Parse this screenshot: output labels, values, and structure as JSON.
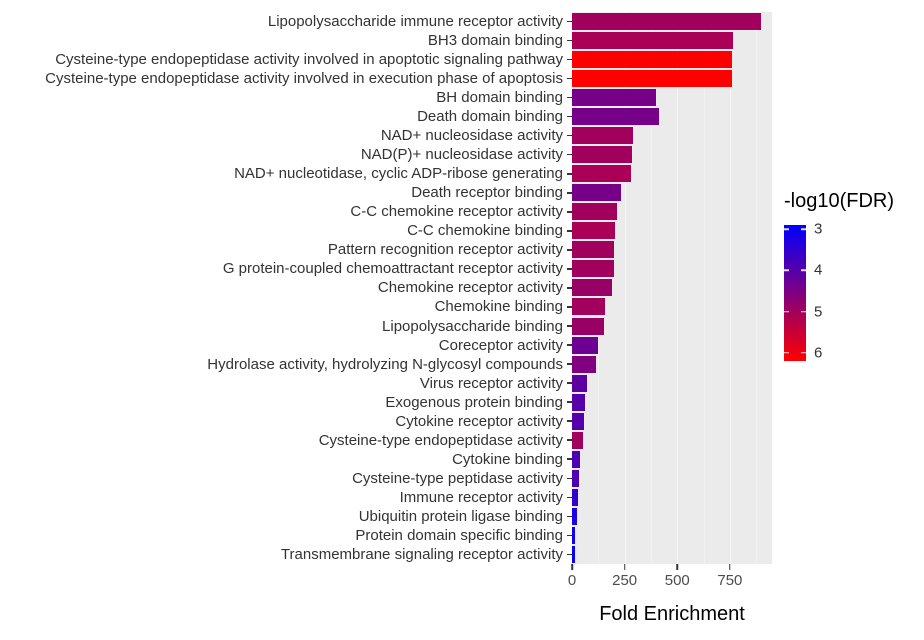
{
  "chart_data": {
    "type": "bar",
    "orientation": "horizontal",
    "title": "",
    "xlabel": "Fold Enrichment",
    "ylabel": "",
    "xlim": [
      0,
      950
    ],
    "xticks": [
      0,
      250,
      500,
      750
    ],
    "xminorticks": [
      125,
      375,
      625,
      875
    ],
    "panel_bg": "#EBEBEB",
    "grid": true,
    "categories": [
      "Lipopolysaccharide immune receptor activity",
      "BH3 domain binding",
      "Cysteine-type endopeptidase activity involved in apoptotic signaling pathway",
      "Cysteine-type endopeptidase activity involved in execution phase of apoptosis",
      "BH domain binding",
      "Death domain binding",
      "NAD+ nucleosidase activity",
      "NAD(P)+ nucleosidase activity",
      "NAD+ nucleotidase, cyclic ADP-ribose generating",
      "Death receptor binding",
      "C-C chemokine receptor activity",
      "C-C chemokine binding",
      "Pattern recognition receptor activity",
      "G protein-coupled chemoattractant receptor activity",
      "Chemokine receptor activity",
      "Chemokine binding",
      "Lipopolysaccharide binding",
      "Coreceptor activity",
      "Hydrolase activity, hydrolyzing N-glycosyl compounds",
      "Virus receptor activity",
      "Exogenous protein binding",
      "Cytokine receptor activity",
      "Cysteine-type endopeptidase activity",
      "Cytokine binding",
      "Cysteine-type peptidase activity",
      "Immune receptor activity",
      "Ubiquitin protein ligase binding",
      "Protein domain specific binding",
      "Transmembrane signaling receptor activity"
    ],
    "values": [
      900,
      765,
      760,
      760,
      400,
      415,
      290,
      285,
      280,
      235,
      215,
      205,
      200,
      198,
      190,
      155,
      150,
      125,
      115,
      70,
      62,
      58,
      52,
      38,
      35,
      30,
      22,
      15,
      12
    ],
    "fdr": [
      4.9,
      5.0,
      6.1,
      6.1,
      4.4,
      4.4,
      4.9,
      4.9,
      5.0,
      4.4,
      4.9,
      5.0,
      4.9,
      4.9,
      4.8,
      4.9,
      4.8,
      4.3,
      4.5,
      4.1,
      4.0,
      4.0,
      4.9,
      3.9,
      3.9,
      3.6,
      3.3,
      3.2,
      3.1
    ],
    "color_scale": {
      "low_value": 3,
      "high_value": 6,
      "low_color": "#0000FF",
      "high_color": "#FF0000"
    },
    "legend": {
      "title": "-log10(FDR)",
      "position": "right",
      "ticks": [
        3,
        4,
        5,
        6
      ],
      "domain": [
        2.9,
        6.2
      ]
    }
  }
}
